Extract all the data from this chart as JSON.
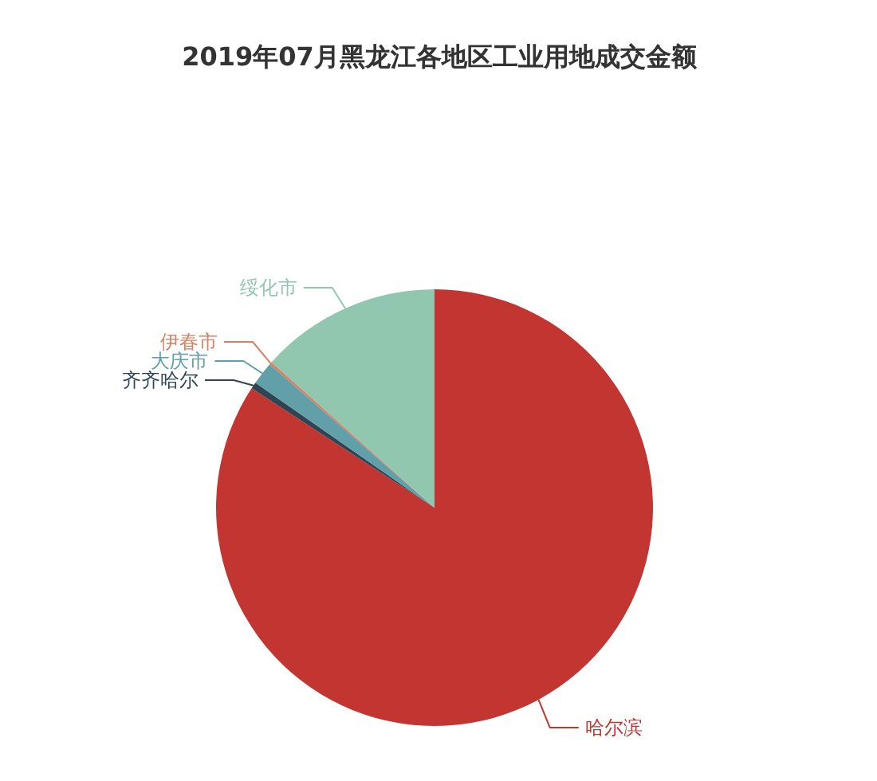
{
  "chart_data": {
    "type": "pie",
    "title": "2019年07月黑龙江各地区工业用地成交金额",
    "categories": [
      "哈尔滨",
      "齐齐哈尔",
      "大庆市",
      "伊春市",
      "绥化市"
    ],
    "values": [
      84.2,
      0.5,
      1.7,
      0.2,
      13.4
    ],
    "colors": [
      "#c23531",
      "#2f4554",
      "#61a0a8",
      "#d48265",
      "#91c7ae"
    ]
  }
}
